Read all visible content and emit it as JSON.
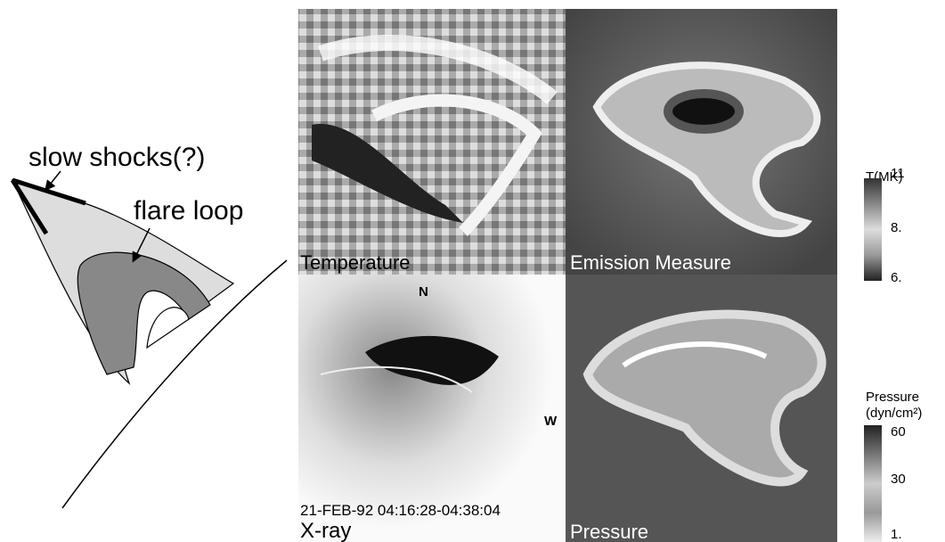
{
  "schematic": {
    "shock_label": "slow shocks(?)",
    "loop_label": "flare loop"
  },
  "panels": {
    "temperature": {
      "label": "Temperature"
    },
    "emission_measure": {
      "label": "Emission Measure"
    },
    "xray": {
      "north": "N",
      "west": "W",
      "date": "21-FEB-92 04:16:28-04:38:04",
      "label": "X-ray"
    },
    "pressure": {
      "label": "Pressure"
    }
  },
  "colorbars": {
    "temperature": {
      "title": "T(MK)",
      "ticks": [
        "11",
        "8.",
        "6."
      ]
    },
    "pressure": {
      "title": "Pressure",
      "unit": "(dyn/cm²)",
      "ticks": [
        "60",
        "30",
        "1."
      ]
    }
  }
}
